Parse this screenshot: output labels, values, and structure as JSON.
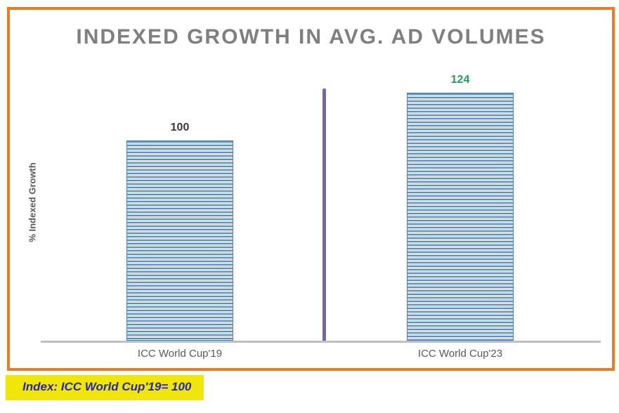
{
  "chart_data": {
    "type": "bar",
    "title": "INDEXED GROWTH IN AVG. AD VOLUMES",
    "ylabel": "% Indexed Growth",
    "xlabel": "",
    "categories": [
      "ICC World Cup'19",
      "ICC World Cup'23"
    ],
    "values": [
      100,
      124
    ],
    "value_label_colors": [
      "#3a3a3a",
      "#1fa050"
    ],
    "ylim": [
      0,
      165
    ],
    "grid": false,
    "legend": "none"
  },
  "note": {
    "text": "Index: ICC World Cup'19= 100"
  },
  "colors": {
    "frame_orange": "#ED7B23",
    "title_gray": "#7F7F7F",
    "axis_gray": "#595959",
    "baseline_gray": "#BFBFBF",
    "divider_purple": "#7565A9",
    "bar_line": "#5E8CC7",
    "bar_mid": "#AFC9E9",
    "bar_light": "#EDF3FB",
    "bar_border": "#4E7FBC",
    "note_yellow": "#F0E60A",
    "note_blue": "#2525BB"
  }
}
